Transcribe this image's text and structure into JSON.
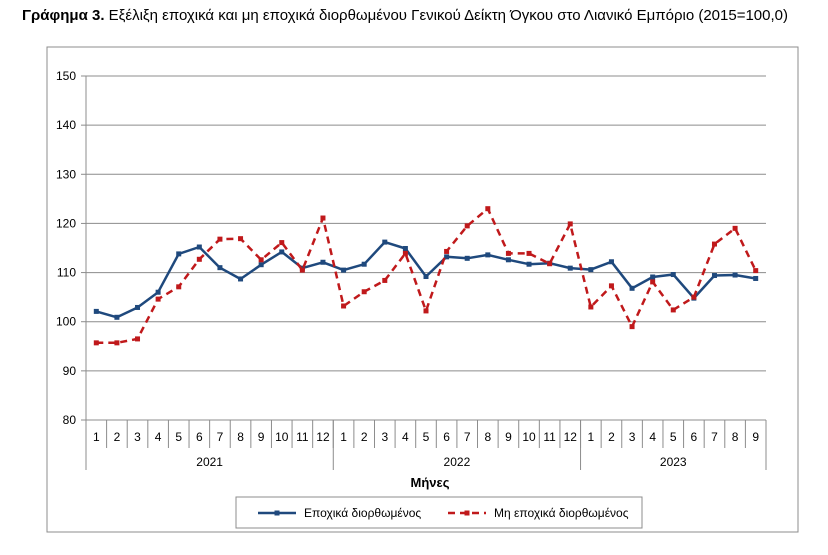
{
  "title": {
    "prefix": "Γράφημα 3.",
    "text": " Εξέλιξη εποχικά και μη εποχικά διορθωμένου Γενικού Δείκτη Όγκου στο Λιανικό Εμπόριο (2015=100,0)"
  },
  "chart_data": {
    "type": "line",
    "title": "Γράφημα 3. Εξέλιξη εποχικά και μη εποχικά διορθωμένου Γενικού Δείκτη Όγκου στο Λιανικό Εμπόριο (2015=100,0)",
    "xlabel": "Μήνες",
    "ylabel": "",
    "ylim": [
      80,
      150
    ],
    "yticks": [
      80,
      90,
      100,
      110,
      120,
      130,
      140,
      150
    ],
    "grid": true,
    "legend_position": "bottom",
    "years": [
      {
        "label": "2021",
        "months": 12
      },
      {
        "label": "2022",
        "months": 12
      },
      {
        "label": "2023",
        "months": 9
      }
    ],
    "categories": [
      "1",
      "2",
      "3",
      "4",
      "5",
      "6",
      "7",
      "8",
      "9",
      "10",
      "11",
      "12",
      "1",
      "2",
      "3",
      "4",
      "5",
      "6",
      "7",
      "8",
      "9",
      "10",
      "11",
      "12",
      "1",
      "2",
      "3",
      "4",
      "5",
      "6",
      "7",
      "8",
      "9"
    ],
    "series": [
      {
        "name": "Εποχικά διορθωμένος",
        "color": "#1f497d",
        "style": "solid",
        "values": [
          102.1,
          100.9,
          102.9,
          106.0,
          113.8,
          115.2,
          111.0,
          108.7,
          111.6,
          114.2,
          110.9,
          112.1,
          110.5,
          111.7,
          116.2,
          114.9,
          109.2,
          113.2,
          112.9,
          113.6,
          112.6,
          111.7,
          111.9,
          110.9,
          110.6,
          112.2,
          106.8,
          109.1,
          109.6,
          104.8,
          109.4,
          109.5,
          108.8
        ]
      },
      {
        "name": "Μη εποχικά διορθωμένος",
        "color": "#c0191b",
        "style": "dashed",
        "values": [
          95.7,
          95.7,
          96.5,
          104.6,
          107.1,
          112.7,
          116.8,
          116.9,
          112.6,
          116.1,
          110.5,
          121.1,
          103.2,
          106.1,
          108.4,
          113.9,
          102.2,
          114.3,
          119.5,
          123.0,
          113.9,
          113.9,
          111.8,
          119.9,
          103.0,
          107.3,
          99.0,
          108.1,
          102.4,
          105.0,
          115.8,
          119.0,
          110.4
        ]
      }
    ]
  }
}
